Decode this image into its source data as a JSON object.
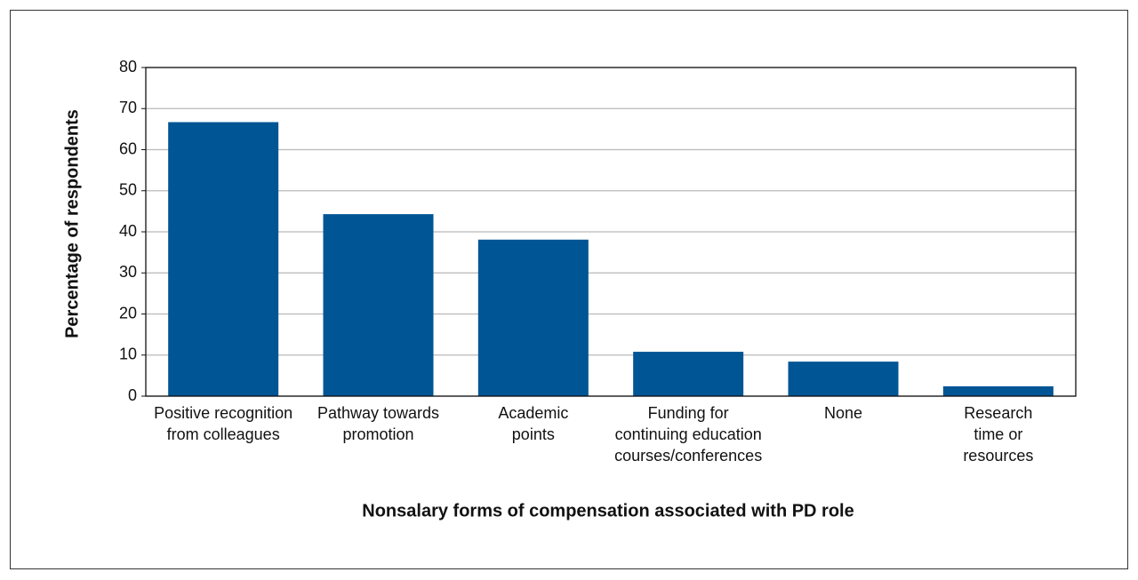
{
  "chart_data": {
    "type": "bar",
    "y_label": "Percentage of respondents",
    "x_label": "Nonsalary forms of compensation associated with PD role",
    "categories": [
      [
        "Positive recognition",
        "from colleagues"
      ],
      [
        "Pathway towards",
        "promotion"
      ],
      [
        "Academic",
        "points"
      ],
      [
        "Funding for",
        "continuing education",
        "courses/conferences"
      ],
      [
        "None"
      ],
      [
        "Research",
        "time or",
        "resources"
      ]
    ],
    "values": [
      66.7,
      44.3,
      38.1,
      10.8,
      8.4,
      2.4
    ],
    "color": "#005595",
    "ylim": [
      0,
      80
    ],
    "yticks": [
      0,
      10,
      20,
      30,
      40,
      50,
      60,
      70,
      80
    ],
    "grid": true
  }
}
